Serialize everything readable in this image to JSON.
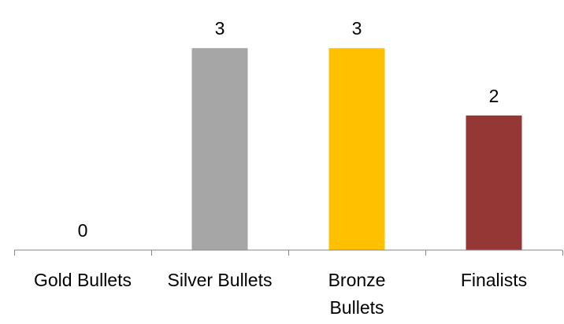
{
  "chart_data": {
    "type": "bar",
    "categories": [
      "Gold Bullets",
      "Silver Bullets",
      "Bronze Bullets",
      "Finalists"
    ],
    "category_lines": [
      [
        "Gold Bullets"
      ],
      [
        "Silver Bullets"
      ],
      [
        "Bronze",
        "Bullets"
      ],
      [
        "Finalists"
      ]
    ],
    "values": [
      0,
      3,
      3,
      2
    ],
    "colors": [
      "#FFD700",
      "#A6A6A6",
      "#FFC000",
      "#953735"
    ],
    "axis_color": "#868686",
    "data_labels": true,
    "legend": "none",
    "grid": false,
    "ylim": [
      0,
      3.4
    ]
  }
}
